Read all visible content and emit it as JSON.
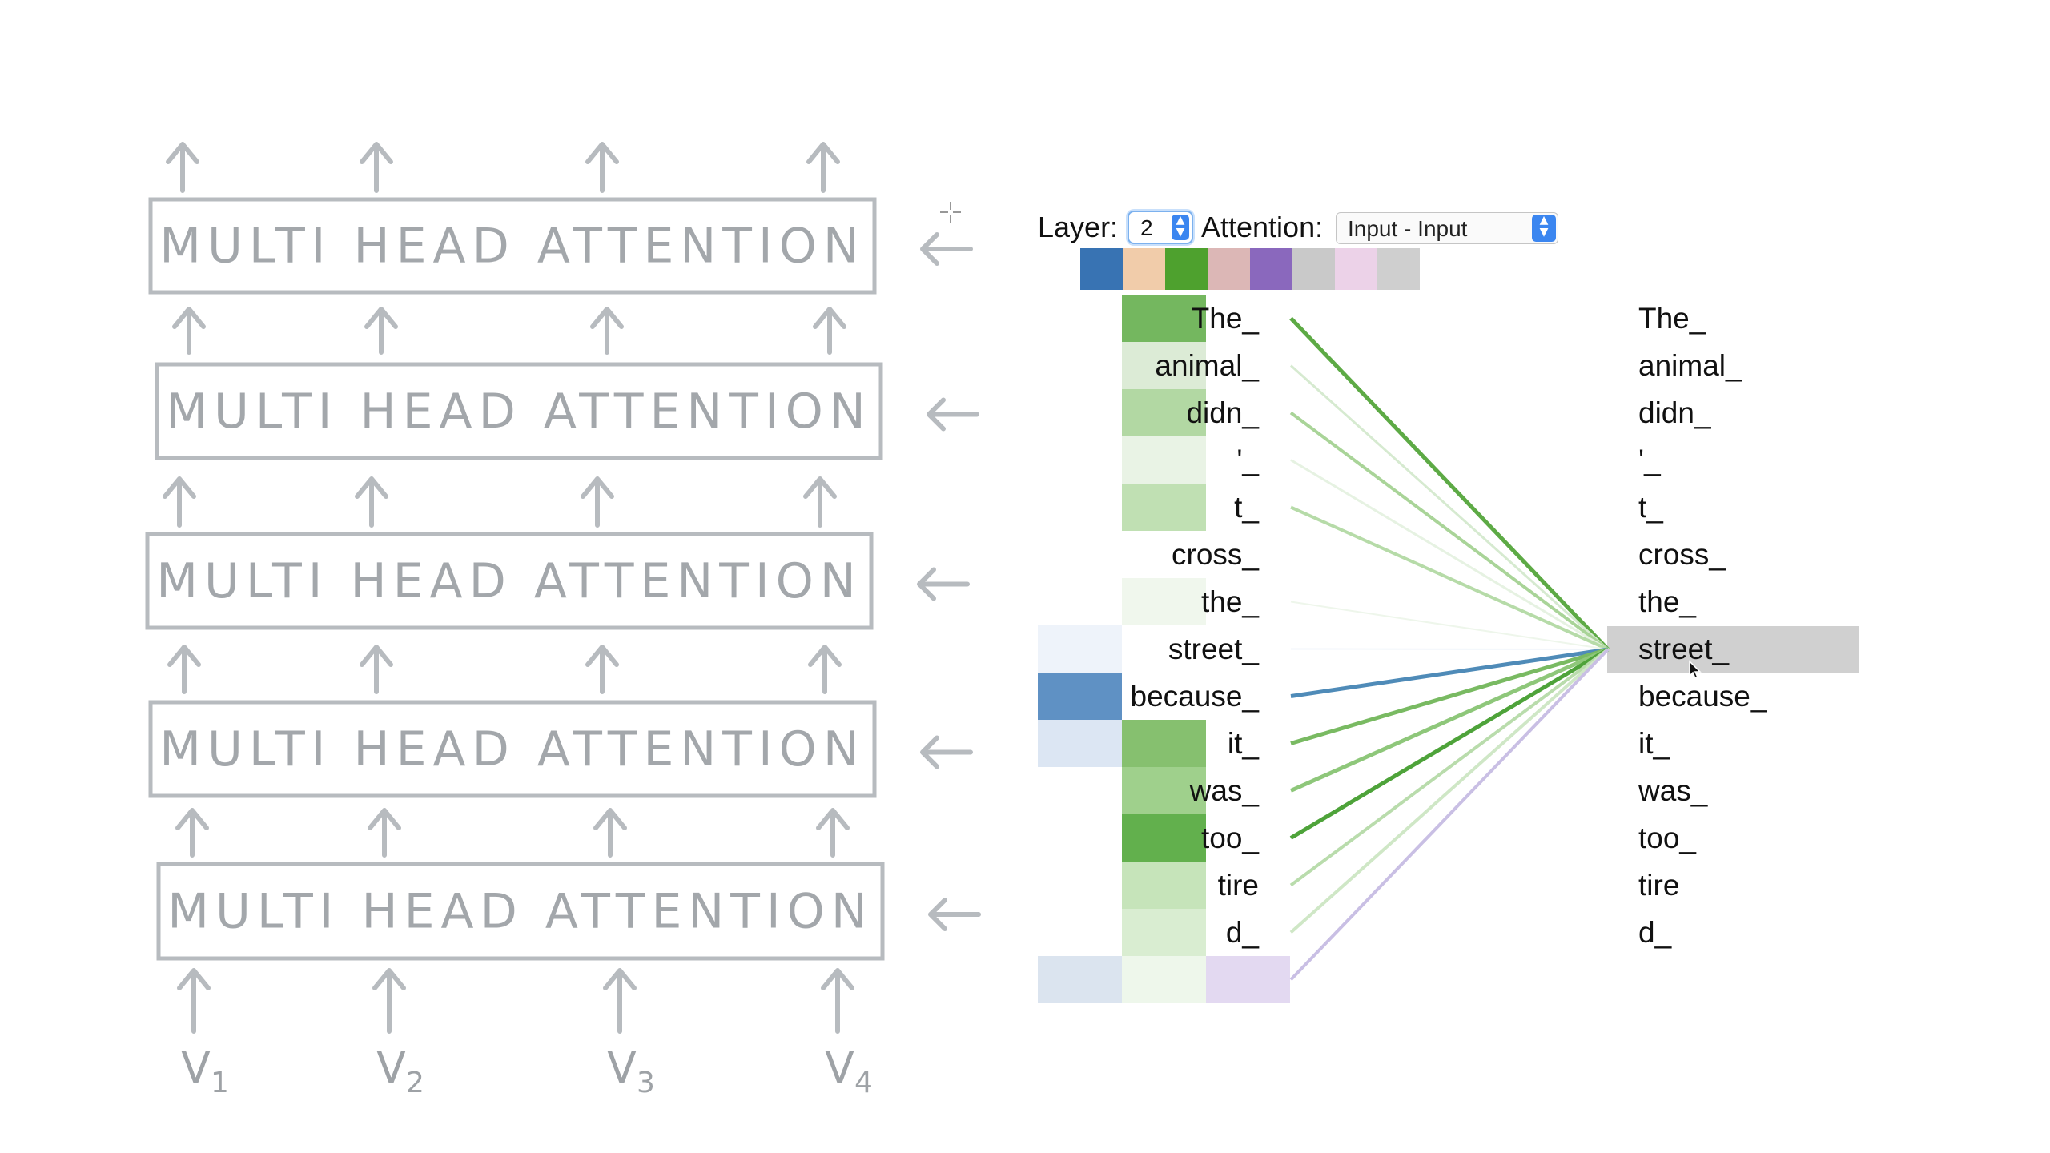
{
  "sketch": {
    "block_label": "MULTI HEAD ATTENTION",
    "inputs": [
      {
        "base": "V",
        "sub": "1"
      },
      {
        "base": "V",
        "sub": "2"
      },
      {
        "base": "V",
        "sub": "3"
      },
      {
        "base": "V",
        "sub": "4"
      }
    ]
  },
  "viz": {
    "layer_label": "Layer:",
    "layer_value": "2",
    "attention_label": "Attention:",
    "attention_value": "Input - Input",
    "head_colors": [
      "#3873b3",
      "#f1ccaa",
      "#4ea12e",
      "#dcb7b6",
      "#8a68bd",
      "#c9c9c9",
      "#ecd2e8",
      "#cfcfcf"
    ],
    "tokens": [
      "The_",
      "animal_",
      "didn_",
      "'_",
      "t_",
      "cross_",
      "the_",
      "street_",
      "because_",
      "it_",
      "was_",
      "too_",
      "tire",
      "d_",
      ""
    ],
    "selected_token": "street_"
  }
}
